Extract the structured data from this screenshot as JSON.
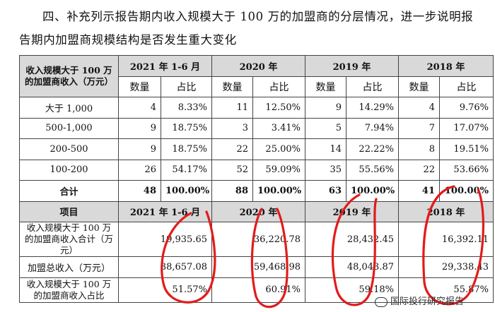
{
  "intro": {
    "line1": "四、补充列示报告期内收入规模大于  100 万的加盟商的分层情况，进一步说明报",
    "line2": "告期内加盟商规模结构是否发生重大变化"
  },
  "table1": {
    "header_label": "收入规模大于 100 万的加盟商收入（万元）",
    "periods": [
      "2021 年 1-6 月",
      "2020 年",
      "2019 年",
      "2018 年"
    ],
    "sub_count": "数量",
    "sub_ratio": "占比",
    "rows": [
      {
        "label": "大于 1,000",
        "c1": "4",
        "r1": "8.33%",
        "c2": "11",
        "r2": "12.50%",
        "c3": "9",
        "r3": "14.29%",
        "c4": "4",
        "r4": "9.76%"
      },
      {
        "label": "500-1,000",
        "c1": "9",
        "r1": "18.75%",
        "c2": "3",
        "r2": "3.41%",
        "c3": "5",
        "r3": "7.94%",
        "c4": "7",
        "r4": "17.07%"
      },
      {
        "label": "200-500",
        "c1": "9",
        "r1": "18.75%",
        "c2": "22",
        "r2": "25.00%",
        "c3": "14",
        "r3": "22.22%",
        "c4": "8",
        "r4": "19.51%"
      },
      {
        "label": "100-200",
        "c1": "26",
        "r1": "54.17%",
        "c2": "52",
        "r2": "59.09%",
        "c3": "35",
        "r3": "55.56%",
        "c4": "22",
        "r4": "53.66%"
      },
      {
        "label": "合计",
        "c1": "48",
        "r1": "100.00%",
        "c2": "88",
        "r2": "100.00%",
        "c3": "63",
        "r3": "100.00%",
        "c4": "41",
        "r4": "100.00%"
      }
    ]
  },
  "table2": {
    "header_label": "项目",
    "periods": [
      "2021 年 1-6 月",
      "2020 年",
      "2019 年",
      "2018 年"
    ],
    "rows": [
      {
        "label": "收入规模大于 100 万的加盟商收入合计（万元）",
        "v1": "19,935.65",
        "v2": "36,220.78",
        "v3": "28,432.45",
        "v4": "16,392.11"
      },
      {
        "label": "加盟总收入（万元）",
        "v1": "38,657.08",
        "v2": "59,468.98",
        "v3": "48,043.87",
        "v4": "29,338.43"
      },
      {
        "label": "收入规模大于 100 万的加盟商收入占比",
        "v1": "51.57%",
        "v2": "60.91%",
        "v3": "59.18%",
        "v4": "55.87%"
      }
    ]
  },
  "watermark": {
    "text": "国际投行研究报告",
    "icon": "wechat-icon"
  },
  "colors": {
    "header_bg": "#d9d9d9",
    "annotation_red": "#e21b1b"
  }
}
